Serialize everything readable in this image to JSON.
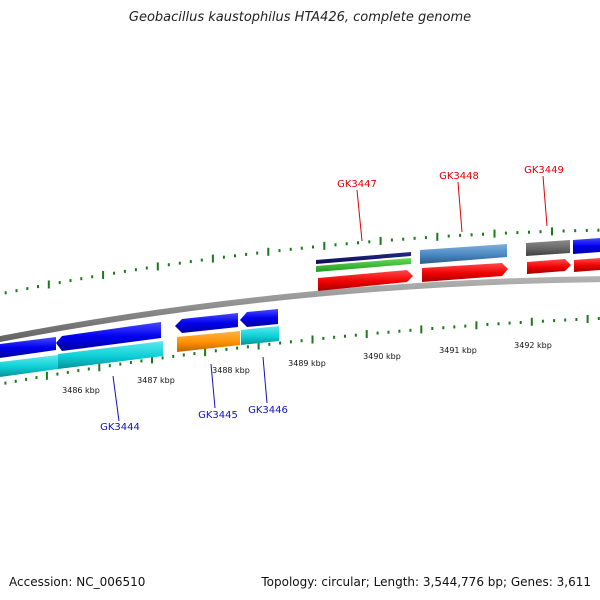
{
  "title": "Geobacillus kaustophilus HTA426, complete genome",
  "footer": {
    "accession": "Accession: NC_006510",
    "summary": "Topology: circular; Length: 3,544,776 bp; Genes: 3,611"
  },
  "colors": {
    "forward_label": "#e00000",
    "reverse_label": "#1010c0",
    "backbone": "#888888",
    "ticks": "#1a7a1a"
  },
  "scale_labels": [
    "3486 kbp",
    "3487 kbp",
    "3488 kbp",
    "3489 kbp",
    "3490 kbp",
    "3491 kbp",
    "3492 kbp"
  ],
  "gene_labels": {
    "forward": [
      "GK3447",
      "GK3448",
      "GK3449"
    ],
    "reverse": [
      "GK3444",
      "GK3445",
      "GK3446"
    ]
  }
}
